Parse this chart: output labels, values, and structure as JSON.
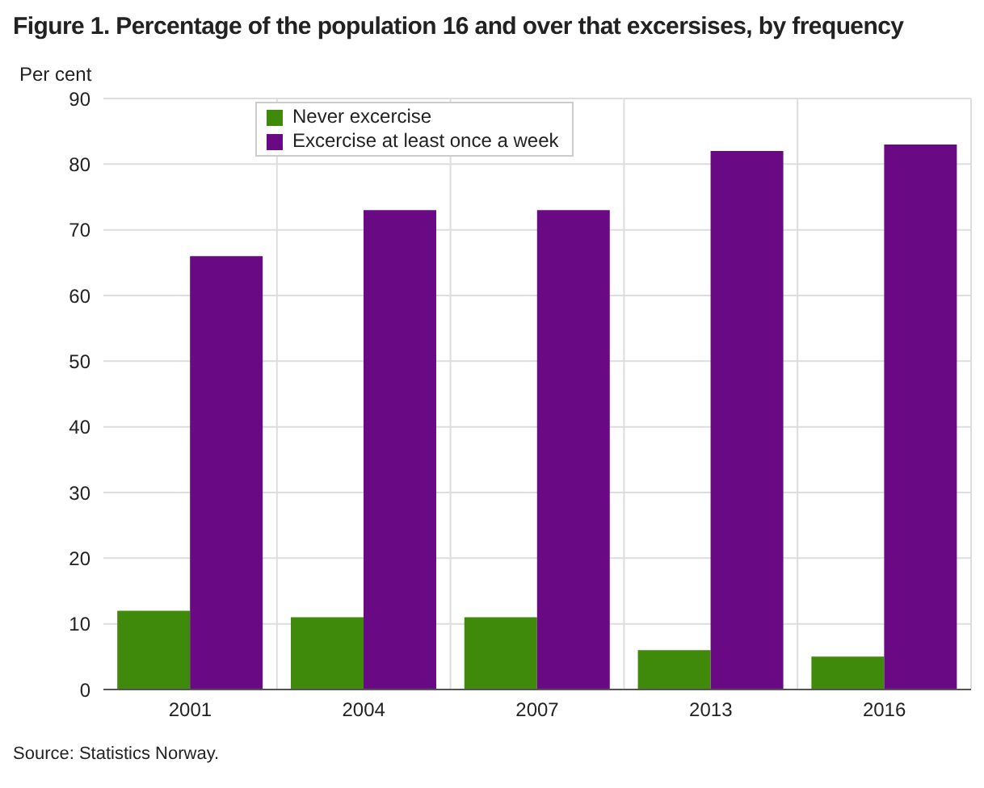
{
  "chart_data": {
    "type": "bar",
    "title": "Figure 1. Percentage of the population 16 and over that excersises, by frequency",
    "ylabel": "Per cent",
    "categories": [
      "2001",
      "2004",
      "2007",
      "2013",
      "2016"
    ],
    "series": [
      {
        "name": "Never excercise",
        "color": "#3f8a0a",
        "values": [
          12,
          11,
          11,
          6,
          5
        ]
      },
      {
        "name": "Excercise at least once a week",
        "color": "#690a84",
        "values": [
          66,
          73,
          73,
          82,
          83
        ]
      }
    ],
    "ylim": [
      0,
      90
    ],
    "yticks": [
      0,
      10,
      20,
      30,
      40,
      50,
      60,
      70,
      80,
      90
    ],
    "grid": true,
    "legend": "top left",
    "annotations": [
      "Source: Statistics Norway."
    ]
  }
}
